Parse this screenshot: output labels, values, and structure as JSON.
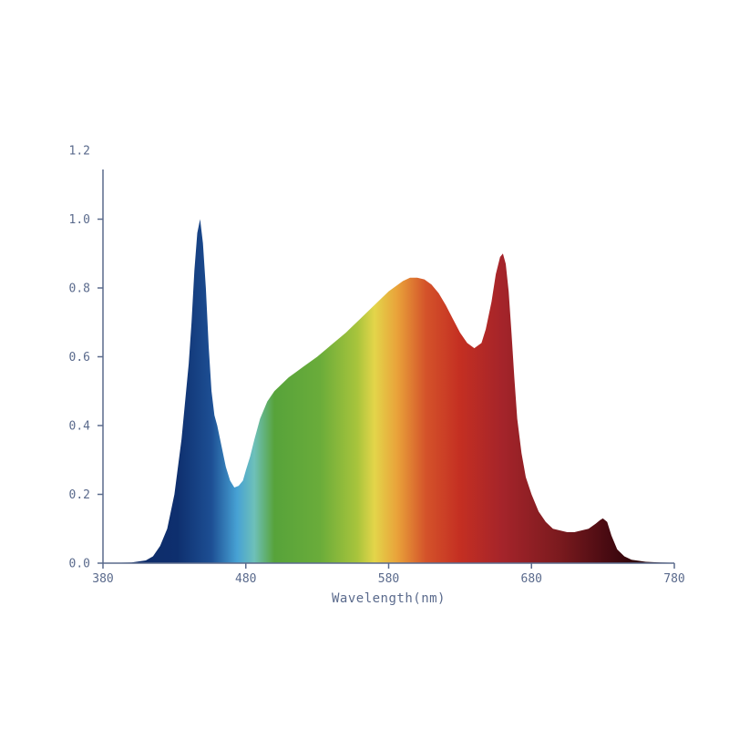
{
  "chart_data": {
    "type": "area",
    "title": "",
    "xlabel": "Wavelength(nm)",
    "ylabel": "",
    "xlim": [
      380,
      780
    ],
    "ylim": [
      0,
      1.2
    ],
    "x_ticks": [
      "380",
      "480",
      "580",
      "680",
      "780"
    ],
    "y_ticks": [
      "0.0",
      "0.2",
      "0.4",
      "0.6",
      "0.8",
      "1.0",
      "1.2"
    ],
    "grid": false,
    "legend": "none",
    "fill": "visible-spectrum gradient",
    "series": [
      {
        "x": [
          380,
          400,
          410,
          415,
          420,
          425,
          430,
          435,
          440,
          442,
          444,
          446,
          448,
          450,
          452,
          454,
          456,
          458,
          460,
          463,
          466,
          469,
          472,
          475,
          478,
          480,
          483,
          486,
          490,
          495,
          500,
          505,
          510,
          515,
          520,
          530,
          540,
          550,
          560,
          570,
          580,
          590,
          595,
          600,
          605,
          610,
          615,
          620,
          625,
          630,
          635,
          640,
          645,
          648,
          652,
          655,
          658,
          660,
          662,
          664,
          666,
          668,
          670,
          673,
          676,
          680,
          685,
          690,
          695,
          700,
          705,
          710,
          715,
          720,
          725,
          728,
          730,
          733,
          736,
          740,
          745,
          750,
          760,
          770,
          780
        ],
        "y": [
          0.0,
          0.002,
          0.008,
          0.02,
          0.05,
          0.1,
          0.2,
          0.36,
          0.58,
          0.7,
          0.85,
          0.96,
          1.0,
          0.93,
          0.8,
          0.63,
          0.5,
          0.43,
          0.4,
          0.34,
          0.28,
          0.24,
          0.22,
          0.225,
          0.24,
          0.27,
          0.31,
          0.36,
          0.42,
          0.47,
          0.5,
          0.52,
          0.54,
          0.555,
          0.57,
          0.6,
          0.635,
          0.67,
          0.71,
          0.75,
          0.79,
          0.82,
          0.83,
          0.83,
          0.825,
          0.81,
          0.785,
          0.75,
          0.71,
          0.67,
          0.64,
          0.625,
          0.64,
          0.68,
          0.76,
          0.84,
          0.89,
          0.9,
          0.87,
          0.79,
          0.67,
          0.54,
          0.42,
          0.32,
          0.25,
          0.2,
          0.15,
          0.12,
          0.1,
          0.095,
          0.09,
          0.09,
          0.095,
          0.1,
          0.115,
          0.125,
          0.13,
          0.12,
          0.08,
          0.04,
          0.02,
          0.01,
          0.004,
          0.002,
          0.001
        ]
      }
    ]
  }
}
